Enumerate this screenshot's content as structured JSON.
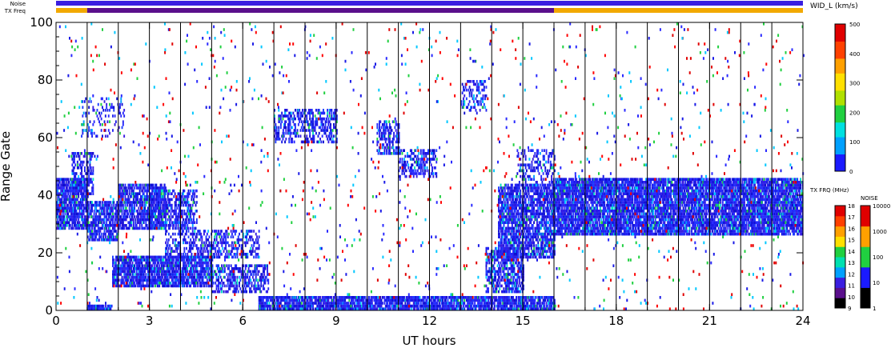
{
  "chart_data": {
    "type": "heatmap",
    "xlabel": "UT hours",
    "ylabel": "Range Gate",
    "xlim": [
      0,
      24
    ],
    "ylim": [
      0,
      100
    ],
    "x_ticks": [
      "0",
      "3",
      "6",
      "9",
      "12",
      "15",
      "18",
      "21",
      "24"
    ],
    "y_ticks": [
      "0",
      "20",
      "40",
      "60",
      "80",
      "100"
    ],
    "grid": "vertical lines every hour",
    "top_bars": [
      {
        "label": "Noise",
        "color": "#3a1ee0"
      },
      {
        "label": "TX Freq",
        "color": "#f2a900",
        "segments": [
          {
            "from": 0,
            "to": 1.0,
            "color": "#f2a900"
          },
          {
            "from": 1.0,
            "to": 16.0,
            "color": "#5a0f8c"
          },
          {
            "from": 16.0,
            "to": 24.0,
            "color": "#f2a900"
          }
        ]
      }
    ],
    "colorbars": [
      {
        "title": "WID_L (km/s)",
        "min": 0,
        "max": 500,
        "ticks": [
          "0",
          "100",
          "200",
          "300",
          "400",
          "500"
        ]
      },
      {
        "title": "TX FRQ (MHz)",
        "ticks": [
          "9",
          "10",
          "11",
          "12",
          "13",
          "14",
          "15",
          "16",
          "17",
          "18"
        ]
      },
      {
        "title": "NOISE",
        "ticks": [
          "1",
          "10",
          "100",
          "1000",
          "10000"
        ]
      }
    ],
    "echo_regions": [
      {
        "t0": 0.0,
        "t1": 1.0,
        "g0": 28,
        "g1": 46,
        "density": 0.8
      },
      {
        "t0": 0.5,
        "t1": 1.2,
        "g0": 40,
        "g1": 55,
        "density": 0.5
      },
      {
        "t0": 1.0,
        "t1": 2.0,
        "g0": 24,
        "g1": 38,
        "density": 0.75
      },
      {
        "t0": 1.0,
        "t1": 1.8,
        "g0": 0,
        "g1": 2,
        "density": 0.9
      },
      {
        "t0": 1.8,
        "t1": 5.0,
        "g0": 8,
        "g1": 19,
        "density": 0.85
      },
      {
        "t0": 5.0,
        "t1": 6.8,
        "g0": 6,
        "g1": 16,
        "density": 0.5
      },
      {
        "t0": 2.0,
        "t1": 3.5,
        "g0": 28,
        "g1": 44,
        "density": 0.75
      },
      {
        "t0": 3.0,
        "t1": 4.5,
        "g0": 28,
        "g1": 42,
        "density": 0.55
      },
      {
        "t0": 3.5,
        "t1": 6.5,
        "g0": 18,
        "g1": 28,
        "density": 0.4
      },
      {
        "t0": 0.8,
        "t1": 2.2,
        "g0": 60,
        "g1": 74,
        "density": 0.2
      },
      {
        "t0": 7.0,
        "t1": 9.0,
        "g0": 58,
        "g1": 70,
        "density": 0.45
      },
      {
        "t0": 10.3,
        "t1": 11.0,
        "g0": 54,
        "g1": 66,
        "density": 0.5
      },
      {
        "t0": 11.0,
        "t1": 12.2,
        "g0": 46,
        "g1": 56,
        "density": 0.45
      },
      {
        "t0": 13.0,
        "t1": 13.8,
        "g0": 68,
        "g1": 80,
        "density": 0.3
      },
      {
        "t0": 14.2,
        "t1": 16.0,
        "g0": 18,
        "g1": 44,
        "density": 0.75
      },
      {
        "t0": 13.8,
        "t1": 15.0,
        "g0": 6,
        "g1": 22,
        "density": 0.6
      },
      {
        "t0": 14.8,
        "t1": 16.0,
        "g0": 44,
        "g1": 56,
        "density": 0.3
      },
      {
        "t0": 16.0,
        "t1": 24.0,
        "g0": 26,
        "g1": 46,
        "density": 0.85
      },
      {
        "t0": 6.5,
        "t1": 16.0,
        "g0": 0,
        "g1": 5,
        "density": 0.85
      }
    ]
  }
}
